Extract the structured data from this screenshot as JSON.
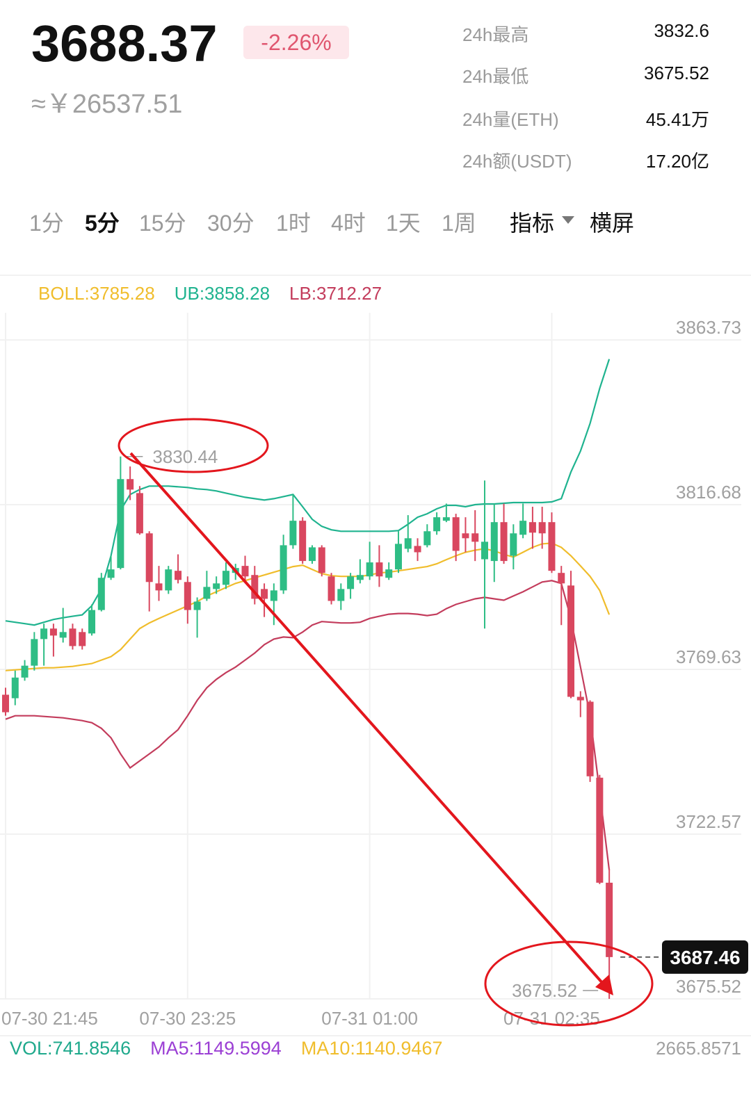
{
  "header": {
    "price": "3688.37",
    "change": "-2.26%",
    "cny": "≈￥26537.51",
    "stats": [
      {
        "label": "24h最高",
        "value": "3832.6"
      },
      {
        "label": "24h最低",
        "value": "3675.52"
      },
      {
        "label": "24h量(ETH)",
        "value": "45.41万"
      },
      {
        "label": "24h额(USDT)",
        "value": "17.20亿"
      }
    ]
  },
  "tabs": [
    "1分",
    "5分",
    "15分",
    "30分",
    "1时",
    "4时",
    "1天",
    "1周",
    "指标",
    "横屏"
  ],
  "chart_data": {
    "type": "candlestick",
    "categories": [
      "07-30 21:45",
      null,
      null,
      null,
      null,
      null,
      null,
      null,
      null,
      null,
      null,
      null,
      null,
      null,
      null,
      null,
      null,
      null,
      null,
      "07-30 23:25",
      null,
      null,
      null,
      null,
      null,
      null,
      null,
      null,
      null,
      null,
      null,
      null,
      null,
      null,
      null,
      null,
      null,
      null,
      "07-31 01:00",
      null,
      null,
      null,
      null,
      null,
      null,
      null,
      null,
      null,
      null,
      null,
      null,
      null,
      null,
      null,
      null,
      null,
      null,
      "07-31 02:35",
      null,
      null,
      null,
      null,
      null,
      null
    ],
    "open": [
      3762.4,
      3761.4,
      3767.3,
      3770.7,
      3778.3,
      3781.3,
      3778.7,
      3781.3,
      3780.3,
      3779.9,
      3786.6,
      3795.8,
      3798.6,
      3824.0,
      3820.0,
      3808.5,
      3794.2,
      3792.2,
      3797.8,
      3794.6,
      3786.6,
      3789.8,
      3792.6,
      3793.8,
      3797.2,
      3799.2,
      3796.6,
      3792.6,
      3789.2,
      3792.2,
      3805.1,
      3812.1,
      3800.6,
      3804.5,
      3796.2,
      3789.2,
      3792.6,
      3795.2,
      3796.2,
      3800.2,
      3795.8,
      3798.2,
      3804.1,
      3804.9,
      3805.1,
      3809.1,
      3812.1,
      3813.1,
      3808.5,
      3808.5,
      3801.1,
      3800.6,
      3811.7,
      3802.1,
      3808.1,
      3811.7,
      3811.7,
      3811.7,
      3797.2,
      3793.6,
      3761.8,
      3760.4,
      3738.7,
      3708.7
    ],
    "high": [
      3764.4,
      3769.3,
      3772.3,
      3780.3,
      3782.7,
      3782.7,
      3787.2,
      3782.7,
      3781.3,
      3788.2,
      3797.2,
      3802.1,
      3830.44,
      3827.6,
      3822.0,
      3809.1,
      3799.2,
      3799.2,
      3802.5,
      3796.2,
      3790.2,
      3797.8,
      3796.2,
      3800.2,
      3799.8,
      3802.1,
      3799.2,
      3794.2,
      3794.2,
      3808.1,
      3819.6,
      3813.1,
      3805.1,
      3805.1,
      3797.2,
      3794.2,
      3797.2,
      3801.1,
      3806.1,
      3805.1,
      3800.2,
      3809.1,
      3813.7,
      3807.1,
      3811.1,
      3814.5,
      3817.0,
      3814.1,
      3813.1,
      3815.1,
      3823.6,
      3817.0,
      3817.0,
      3811.1,
      3817.0,
      3816.1,
      3816.1,
      3814.5,
      3799.2,
      3797.8,
      3763.4,
      3760.8,
      3739.5,
      3712.7
    ],
    "low": [
      3756.4,
      3759.4,
      3766.4,
      3769.3,
      3770.7,
      3773.3,
      3777.3,
      3775.3,
      3775.3,
      3779.3,
      3786.2,
      3795.2,
      3798.2,
      3818.0,
      3808.1,
      3786.2,
      3789.2,
      3791.2,
      3794.2,
      3782.7,
      3778.7,
      3789.2,
      3791.2,
      3792.6,
      3795.2,
      3794.6,
      3788.2,
      3784.6,
      3782.3,
      3791.2,
      3804.1,
      3799.8,
      3799.8,
      3796.2,
      3788.2,
      3786.6,
      3789.8,
      3794.2,
      3795.2,
      3793.2,
      3795.2,
      3797.2,
      3803.1,
      3800.6,
      3804.5,
      3808.1,
      3811.7,
      3800.6,
      3803.1,
      3800.6,
      3781.3,
      3794.6,
      3799.8,
      3798.2,
      3807.1,
      3804.1,
      3804.1,
      3797.2,
      3782.3,
      3761.4,
      3756.0,
      3737.5,
      3708.3,
      3675.52
    ],
    "close": [
      3757.4,
      3767.3,
      3770.7,
      3778.3,
      3781.3,
      3779.3,
      3780.3,
      3776.3,
      3776.3,
      3786.6,
      3795.8,
      3798.2,
      3824.0,
      3821.0,
      3808.5,
      3794.6,
      3792.2,
      3798.2,
      3795.2,
      3786.6,
      3789.0,
      3793.2,
      3794.2,
      3797.8,
      3798.6,
      3796.2,
      3789.8,
      3789.8,
      3792.2,
      3805.1,
      3812.1,
      3800.6,
      3804.5,
      3797.2,
      3789.2,
      3792.6,
      3796.2,
      3796.6,
      3800.2,
      3796.2,
      3798.2,
      3805.5,
      3807.1,
      3803.1,
      3809.1,
      3813.1,
      3813.1,
      3803.5,
      3807.1,
      3806.1,
      3806.1,
      3811.7,
      3800.6,
      3808.5,
      3812.1,
      3808.7,
      3808.5,
      3797.8,
      3794.2,
      3761.8,
      3760.8,
      3739.1,
      3708.7,
      3687.46
    ],
    "up_color": "#2ebd85",
    "down_color": "#d9475f",
    "series": [
      {
        "name": "BOLL:3785.28",
        "color": "#f0bd2c",
        "values": [
          3769.3,
          3769.5,
          3769.7,
          3769.9,
          3770.1,
          3770.1,
          3770.3,
          3770.5,
          3770.9,
          3771.3,
          3772.3,
          3773.3,
          3775.3,
          3778.3,
          3781.3,
          3782.9,
          3784.2,
          3785.4,
          3786.6,
          3787.8,
          3789.0,
          3790.6,
          3791.8,
          3793.0,
          3794.2,
          3795.0,
          3795.8,
          3796.6,
          3797.4,
          3798.2,
          3799.0,
          3799.4,
          3798.2,
          3797.0,
          3796.4,
          3796.2,
          3796.2,
          3796.2,
          3796.6,
          3797.2,
          3797.4,
          3797.8,
          3798.2,
          3798.6,
          3799.0,
          3799.8,
          3801.0,
          3802.1,
          3803.1,
          3803.7,
          3804.1,
          3803.5,
          3802.5,
          3801.7,
          3803.1,
          3804.5,
          3805.5,
          3805.7,
          3804.5,
          3802.1,
          3799.2,
          3796.2,
          3792.2,
          3785.28
        ]
      },
      {
        "name": "UB:3858.28",
        "color": "#1fb38f",
        "values": [
          3783.5,
          3783.1,
          3782.7,
          3782.3,
          3783.1,
          3783.9,
          3784.4,
          3784.8,
          3785.2,
          3787.8,
          3792.6,
          3802.1,
          3815.1,
          3819.6,
          3821.0,
          3822.0,
          3822.0,
          3822.0,
          3821.8,
          3821.6,
          3821.2,
          3821.0,
          3820.6,
          3820.0,
          3819.4,
          3818.8,
          3818.4,
          3818.0,
          3818.4,
          3819.0,
          3819.6,
          3816.1,
          3812.5,
          3810.5,
          3809.5,
          3809.1,
          3809.1,
          3809.1,
          3809.1,
          3809.1,
          3809.1,
          3809.3,
          3811.1,
          3813.1,
          3814.1,
          3815.5,
          3816.5,
          3816.5,
          3816.1,
          3816.7,
          3816.9,
          3816.9,
          3817.1,
          3817.3,
          3817.3,
          3817.3,
          3817.3,
          3817.5,
          3818.4,
          3826.0,
          3832.0,
          3839.9,
          3849.9,
          3858.28
        ]
      },
      {
        "name": "LB:3712.27",
        "color": "#c33c5c",
        "values": [
          3755.4,
          3756.4,
          3756.4,
          3756.4,
          3756.2,
          3756.0,
          3755.8,
          3755.4,
          3755.0,
          3754.4,
          3752.8,
          3750.1,
          3745.5,
          3741.5,
          3743.5,
          3745.5,
          3747.5,
          3750.1,
          3752.4,
          3756.4,
          3760.8,
          3764.4,
          3766.8,
          3768.7,
          3770.3,
          3772.3,
          3774.3,
          3776.7,
          3778.3,
          3778.9,
          3778.7,
          3780.3,
          3782.3,
          3783.3,
          3783.1,
          3782.9,
          3782.9,
          3783.1,
          3784.2,
          3784.8,
          3785.4,
          3785.6,
          3785.6,
          3785.4,
          3785.0,
          3785.4,
          3787.0,
          3788.2,
          3789.0,
          3789.8,
          3790.2,
          3789.8,
          3789.4,
          3790.6,
          3791.8,
          3793.2,
          3794.6,
          3795.0,
          3794.2,
          3784.2,
          3770.3,
          3756.4,
          3734.6,
          3712.27
        ]
      }
    ],
    "ylim": [
      3675.52,
      3871.5
    ],
    "yticks": [
      3863.73,
      3816.68,
      3769.63,
      3722.57,
      3675.52
    ],
    "grid": true,
    "high_marker": 3830.44,
    "low_marker": 3675.52,
    "last_price": 3687.46
  },
  "volume": {
    "legend": [
      {
        "text": "VOL:741.8546",
        "color": "#1fa98c"
      },
      {
        "text": "MA5:1149.5994",
        "color": "#9b3fd4"
      },
      {
        "text": "MA10:1140.9467",
        "color": "#f0bd2c"
      }
    ],
    "max_label": "2665.8571"
  }
}
